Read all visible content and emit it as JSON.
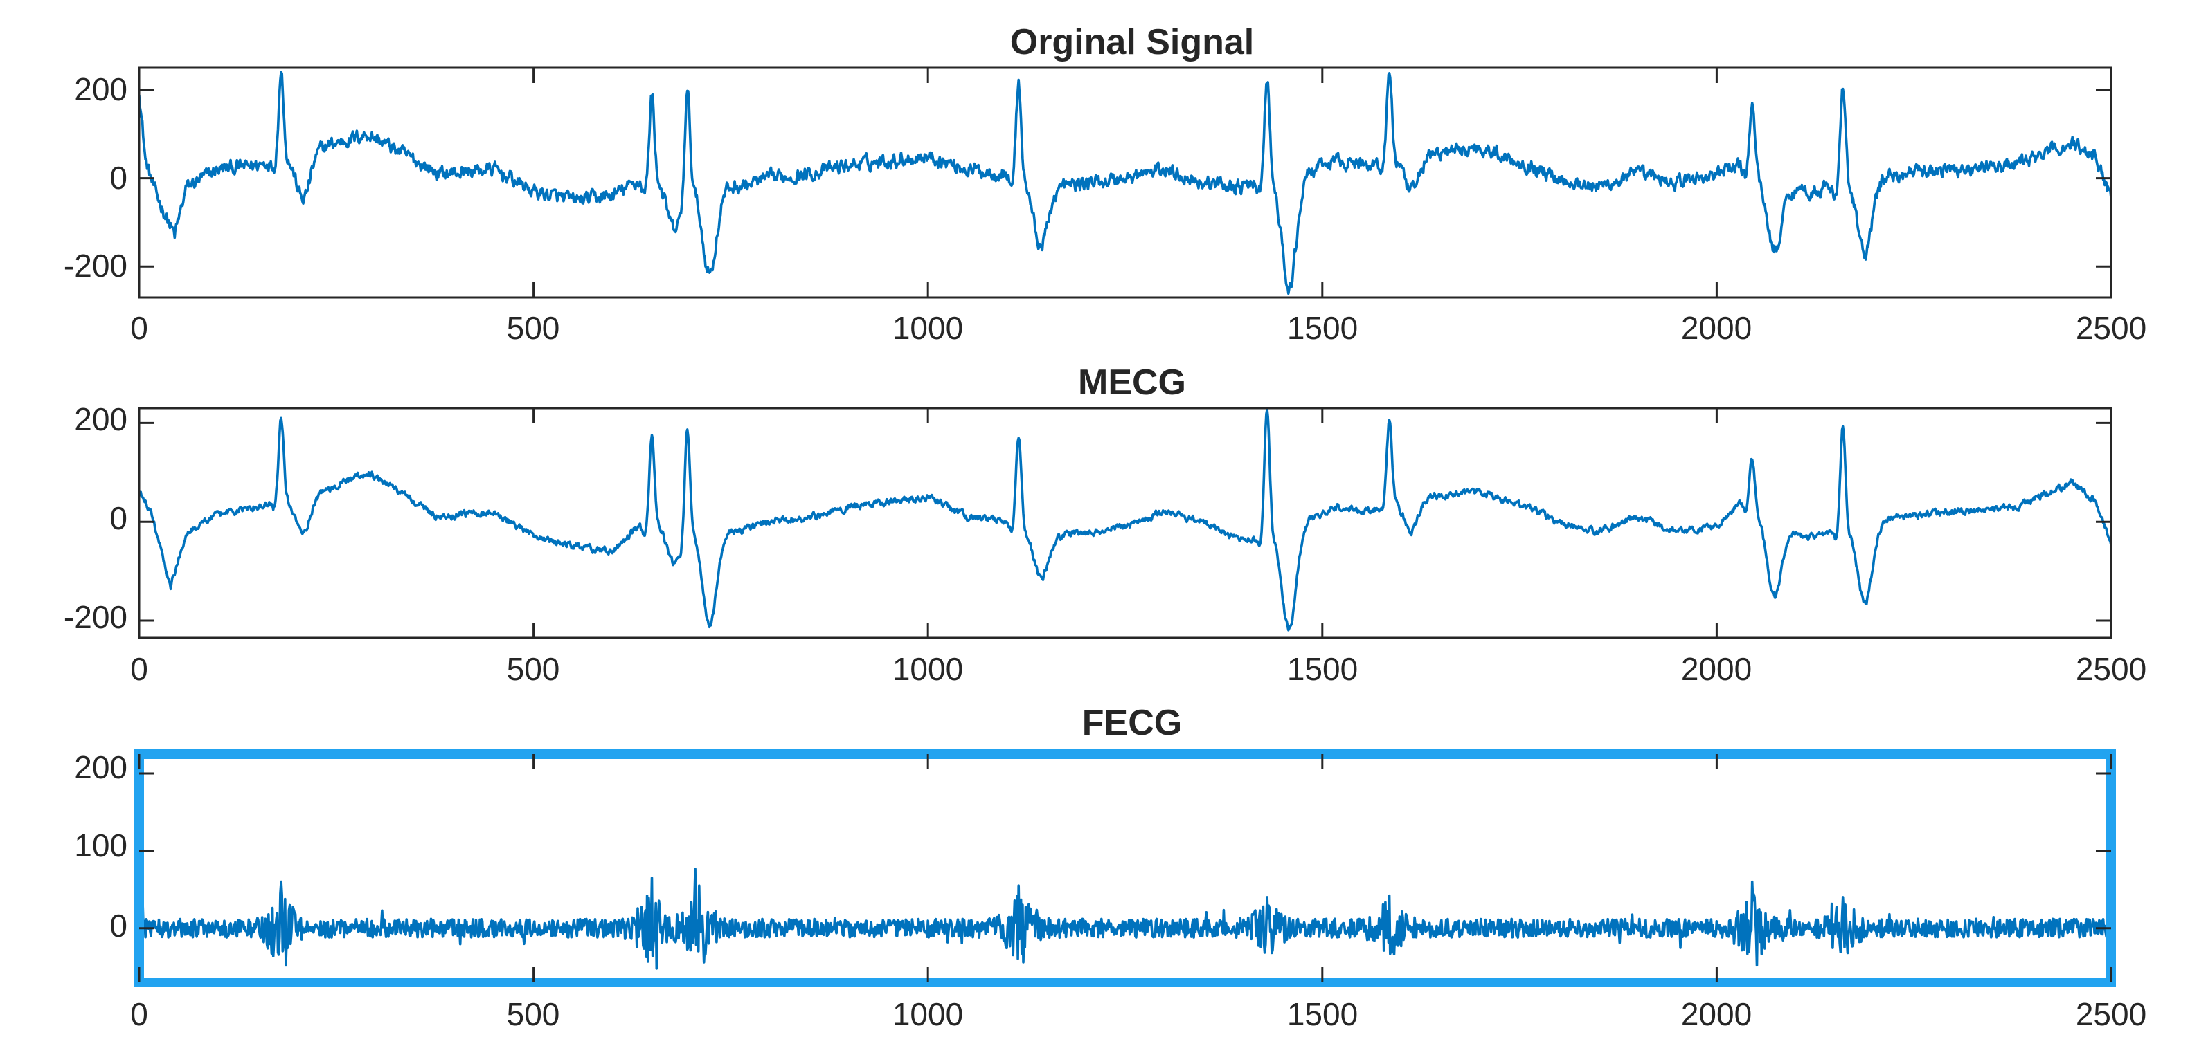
{
  "colors": {
    "line": "#0072bd",
    "selection": "#22a3f0",
    "axes": "#262626"
  },
  "chart_data": [
    {
      "type": "line",
      "title": "Orginal Signal",
      "xlim": [
        0,
        2500
      ],
      "ylim": [
        -270,
        250
      ],
      "xticks": [
        0,
        500,
        1000,
        1500,
        2000,
        2500
      ],
      "yticks": [
        -200,
        0,
        200
      ],
      "grid": false,
      "selected": false,
      "series": [
        {
          "style": "ecg",
          "beats": [
            {
              "x": 180,
              "q": -30,
              "r": 240,
              "s": -60
            },
            {
              "x": 650,
              "q": -60,
              "r": 190,
              "s": -110
            },
            {
              "x": 695,
              "q": -20,
              "r": 210,
              "s": -210
            },
            {
              "x": 1115,
              "q": -40,
              "r": 215,
              "s": -140
            },
            {
              "x": 1430,
              "q": -30,
              "r": 225,
              "s": -265
            },
            {
              "x": 1585,
              "q": -30,
              "r": 245,
              "s": -40
            },
            {
              "x": 2045,
              "q": -40,
              "r": 170,
              "s": -140
            },
            {
              "x": 2160,
              "q": -30,
              "r": 205,
              "s": -180
            }
          ],
          "baseline": [
            [
              0,
              200
            ],
            [
              8,
              40
            ],
            [
              20,
              -30
            ],
            [
              45,
              -130
            ],
            [
              60,
              -20
            ],
            [
              100,
              20
            ],
            [
              150,
              30
            ],
            [
              230,
              70
            ],
            [
              290,
              100
            ],
            [
              330,
              60
            ],
            [
              380,
              10
            ],
            [
              450,
              20
            ],
            [
              500,
              -30
            ],
            [
              550,
              -50
            ],
            [
              600,
              -40
            ],
            [
              640,
              0
            ],
            [
              760,
              -20
            ],
            [
              800,
              0
            ],
            [
              850,
              10
            ],
            [
              900,
              30
            ],
            [
              950,
              40
            ],
            [
              1000,
              50
            ],
            [
              1050,
              20
            ],
            [
              1100,
              10
            ],
            [
              1160,
              -20
            ],
            [
              1250,
              0
            ],
            [
              1300,
              20
            ],
            [
              1350,
              -10
            ],
            [
              1400,
              -20
            ],
            [
              1490,
              20
            ],
            [
              1520,
              40
            ],
            [
              1550,
              30
            ],
            [
              1620,
              50
            ],
            [
              1700,
              70
            ],
            [
              1760,
              30
            ],
            [
              1800,
              0
            ],
            [
              1850,
              -20
            ],
            [
              1900,
              10
            ],
            [
              1950,
              -10
            ],
            [
              2000,
              10
            ],
            [
              2030,
              30
            ],
            [
              2090,
              -20
            ],
            [
              2120,
              -30
            ],
            [
              2230,
              10
            ],
            [
              2300,
              20
            ],
            [
              2380,
              30
            ],
            [
              2450,
              80
            ],
            [
              2480,
              50
            ],
            [
              2500,
              -40
            ]
          ],
          "noise": 16
        }
      ]
    },
    {
      "type": "line",
      "title": "MECG",
      "xlim": [
        0,
        2500
      ],
      "ylim": [
        -235,
        230
      ],
      "xticks": [
        0,
        500,
        1000,
        1500,
        2000,
        2500
      ],
      "yticks": [
        -200,
        0,
        200
      ],
      "grid": false,
      "selected": false,
      "series": [
        {
          "style": "ecg",
          "beats": [
            {
              "x": 180,
              "q": -20,
              "r": 210,
              "s": -30
            },
            {
              "x": 650,
              "q": -50,
              "r": 170,
              "s": -80
            },
            {
              "x": 695,
              "q": -20,
              "r": 200,
              "s": -205
            },
            {
              "x": 1115,
              "q": -30,
              "r": 170,
              "s": -100
            },
            {
              "x": 1430,
              "q": -30,
              "r": 230,
              "s": -235
            },
            {
              "x": 1585,
              "q": -20,
              "r": 205,
              "s": -30
            },
            {
              "x": 2045,
              "q": -30,
              "r": 130,
              "s": -120
            },
            {
              "x": 2160,
              "q": -30,
              "r": 200,
              "s": -175
            }
          ],
          "baseline": [
            [
              0,
              60
            ],
            [
              15,
              20
            ],
            [
              40,
              -130
            ],
            [
              60,
              -20
            ],
            [
              100,
              15
            ],
            [
              150,
              30
            ],
            [
              230,
              60
            ],
            [
              290,
              100
            ],
            [
              330,
              60
            ],
            [
              380,
              10
            ],
            [
              450,
              20
            ],
            [
              500,
              -30
            ],
            [
              550,
              -50
            ],
            [
              600,
              -60
            ],
            [
              640,
              0
            ],
            [
              760,
              -20
            ],
            [
              800,
              0
            ],
            [
              850,
              10
            ],
            [
              900,
              30
            ],
            [
              950,
              40
            ],
            [
              1000,
              50
            ],
            [
              1050,
              10
            ],
            [
              1100,
              0
            ],
            [
              1160,
              -30
            ],
            [
              1250,
              -10
            ],
            [
              1300,
              20
            ],
            [
              1350,
              0
            ],
            [
              1400,
              -40
            ],
            [
              1490,
              10
            ],
            [
              1520,
              30
            ],
            [
              1550,
              20
            ],
            [
              1620,
              50
            ],
            [
              1700,
              60
            ],
            [
              1760,
              30
            ],
            [
              1800,
              0
            ],
            [
              1850,
              -20
            ],
            [
              1900,
              10
            ],
            [
              1950,
              -20
            ],
            [
              2000,
              -10
            ],
            [
              2030,
              40
            ],
            [
              2090,
              -20
            ],
            [
              2120,
              -30
            ],
            [
              2230,
              10
            ],
            [
              2300,
              20
            ],
            [
              2380,
              30
            ],
            [
              2450,
              80
            ],
            [
              2480,
              40
            ],
            [
              2500,
              -40
            ]
          ],
          "noise": 7
        }
      ]
    },
    {
      "type": "line",
      "title": "FECG",
      "xlim": [
        0,
        2500
      ],
      "ylim": [
        -70,
        225
      ],
      "xticks": [
        0,
        500,
        1000,
        1500,
        2000,
        2500
      ],
      "yticks": [
        0,
        100,
        200
      ],
      "grid": false,
      "selected": true,
      "series": [
        {
          "style": "noise",
          "spike_start": 200,
          "bursts": [
            {
              "x": 180,
              "amp": 60
            },
            {
              "x": 650,
              "amp": 65
            },
            {
              "x": 710,
              "amp": 55
            },
            {
              "x": 1115,
              "amp": 55
            },
            {
              "x": 1430,
              "amp": 40
            },
            {
              "x": 1585,
              "amp": 42
            },
            {
              "x": 2045,
              "amp": 60
            },
            {
              "x": 2160,
              "amp": 40
            }
          ],
          "noise": 12
        }
      ]
    }
  ]
}
